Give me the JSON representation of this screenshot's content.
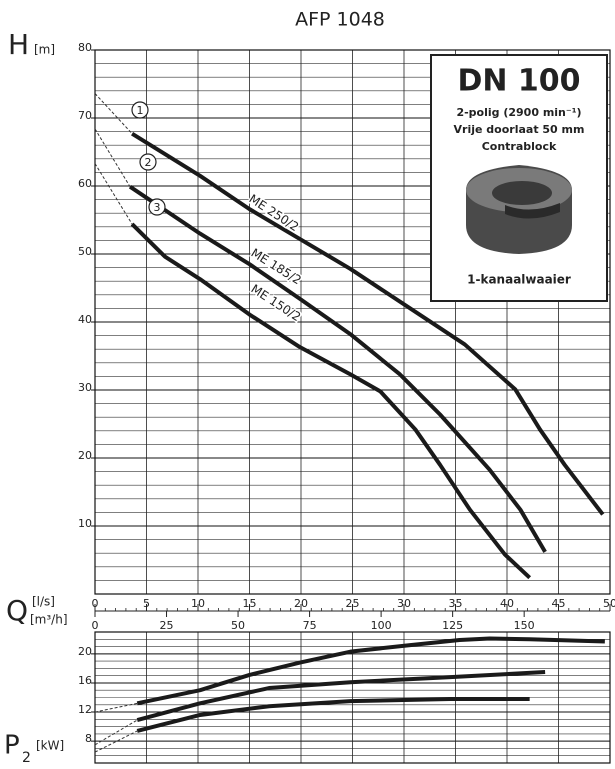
{
  "chart_data": [
    {
      "type": "line",
      "title": "AFP 1048",
      "ylabel": "H",
      "yunit": "[m]",
      "xlabel": "Q",
      "xunit": "[l/s]",
      "x2unit": "[m³/h]",
      "xlim": [
        0,
        50
      ],
      "xticks": [
        0,
        5,
        10,
        15,
        20,
        25,
        30,
        35,
        40,
        45,
        50
      ],
      "x2lim": [
        0,
        180
      ],
      "x2ticks": [
        0,
        25,
        50,
        75,
        100,
        125,
        150
      ],
      "ylim": [
        0,
        80
      ],
      "yticks": [
        10,
        20,
        30,
        40,
        50,
        60,
        70,
        80
      ],
      "grid": true,
      "color": "#1a1a1a",
      "series": [
        {
          "name": "ME 250/2",
          "marker_label": "1",
          "x": [
            3.6,
            10.2,
            15,
            19.9,
            24.8,
            32.5,
            35.9,
            40.8,
            43.2,
            45.6,
            49.3
          ],
          "values": [
            67.7,
            61.5,
            56.6,
            52.2,
            47.8,
            40.1,
            36.7,
            30.1,
            24.2,
            19,
            11.7
          ],
          "extrapolation": {
            "x": [
              0,
              3.6
            ],
            "values": [
              73.6,
              67.7
            ]
          }
        },
        {
          "name": "ME 185/2",
          "marker_label": "2",
          "x": [
            3.4,
            10.2,
            15,
            19.9,
            24.8,
            29.6,
            33.5,
            38.3,
            41.3,
            43.7
          ],
          "values": [
            59.9,
            53,
            48.5,
            43.4,
            38.2,
            32.3,
            26.4,
            18.3,
            12.4,
            6.2
          ],
          "extrapolation": {
            "x": [
              0,
              3.4
            ],
            "values": [
              68.4,
              59.9
            ]
          }
        },
        {
          "name": "ME 150/2",
          "marker_label": "3",
          "x": [
            3.6,
            6.8,
            10.2,
            15,
            19.9,
            24.8,
            27.7,
            31.1,
            33.5,
            36.4,
            39.8,
            42.2
          ],
          "values": [
            54.4,
            49.6,
            46.3,
            41.1,
            36.3,
            32.3,
            29.8,
            24.2,
            19,
            12.4,
            5.8,
            2.4
          ],
          "extrapolation": {
            "x": [
              0,
              3.6
            ],
            "values": [
              63.3,
              54.4
            ]
          }
        }
      ],
      "info": {
        "title": "DN 100",
        "lines": [
          "2-polig (2900 min⁻¹)",
          "Vrije doorlaat 50 mm",
          "Contrablock"
        ],
        "caption": "1-kanaalwaaier"
      }
    },
    {
      "type": "line",
      "ylabel": "P",
      "ysub": "2",
      "yunit": "[kW]",
      "xlim": [
        0,
        50
      ],
      "xticks": [
        5,
        10,
        15,
        20,
        25,
        30,
        35,
        40,
        45
      ],
      "ylim": [
        5,
        23
      ],
      "yticks": [
        8,
        12,
        16,
        20
      ],
      "grid": true,
      "color": "#1a1a1a",
      "series": [
        {
          "x": [
            4.1,
            10.2,
            15,
            19.9,
            24.8,
            30.6,
            35.4,
            38.3,
            42.2,
            49.5
          ],
          "values": [
            13.2,
            15,
            17.1,
            18.8,
            20.3,
            21.2,
            21.9,
            22.1,
            22,
            21.7
          ],
          "extrapolation": {
            "x": [
              0,
              4.1
            ],
            "values": [
              12,
              13.2
            ]
          }
        },
        {
          "x": [
            4.1,
            10.2,
            16.9,
            24.8,
            34.5,
            43.7
          ],
          "values": [
            10.9,
            13.2,
            15.3,
            16.1,
            16.8,
            17.5
          ],
          "extrapolation": {
            "x": [
              0,
              4.1
            ],
            "values": [
              7.5,
              10.9
            ]
          }
        },
        {
          "x": [
            4.1,
            10.2,
            16.9,
            24.8,
            34.5,
            42.2
          ],
          "values": [
            9.4,
            11.6,
            12.8,
            13.5,
            13.8,
            13.8
          ],
          "extrapolation": {
            "x": [
              0,
              4.1
            ],
            "values": [
              6.5,
              9.4
            ]
          }
        }
      ]
    }
  ]
}
